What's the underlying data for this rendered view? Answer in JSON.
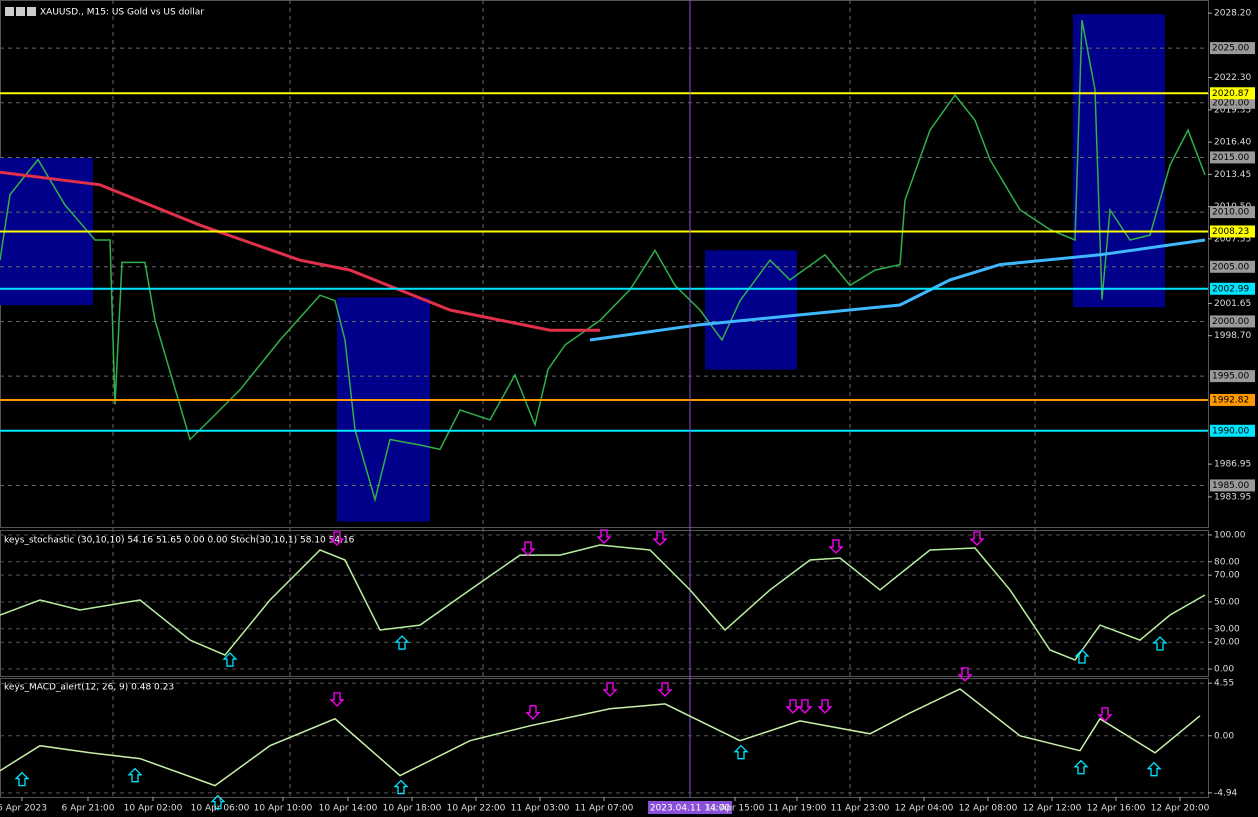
{
  "chart_data": [
    {
      "type": "line",
      "title": "XAUUSD., M15:  US Gold vs US dollar",
      "xlim": [
        0,
        302
      ],
      "ylim": [
        1981.2,
        2029.4
      ],
      "yticks": [
        {
          "value": 2028.2,
          "label": "2028.20"
        },
        {
          "value": 2022.3,
          "label": "2022.30"
        },
        2019.35,
        {
          "value": 2016.4,
          "label": "2016.40"
        },
        2013.45,
        {
          "value": 2010.5,
          "label": "2010.50"
        },
        2007.55,
        2001.65,
        {
          "value": 1998.7,
          "label": "1998.70"
        },
        1986.95,
        1983.95
      ],
      "grid_levels": [
        {
          "value": 2025,
          "label": "2025.00"
        },
        {
          "value": 2020,
          "label": "2020.00"
        },
        {
          "value": 2015,
          "label": "2015.00"
        },
        {
          "value": 2010,
          "label": "2010.00"
        },
        {
          "value": 2005,
          "label": "2005.00"
        },
        {
          "value": 2000,
          "label": "2000.00"
        },
        {
          "value": 1995,
          "label": "1995.00"
        },
        {
          "value": 1985,
          "label": "1985.00"
        }
      ],
      "levels": [
        {
          "value": 2020.87,
          "color": "#ffff00"
        },
        {
          "value": 2008.23,
          "color": "#ffff00"
        },
        {
          "value": 2002.99,
          "color": "#00e5ff"
        },
        {
          "value": 1992.82,
          "color": "#ff9800"
        },
        {
          "value": 1990,
          "label": "1990.00",
          "color": "#00e5ff"
        }
      ],
      "zones": [
        {
          "x": [
            0,
            23.25
          ],
          "y": [
            2001.5,
            2014.95
          ]
        },
        {
          "x": [
            84.25,
            107.5
          ],
          "y": [
            1981.7,
            2002.2
          ]
        },
        {
          "x": [
            176.25,
            199.25
          ],
          "y": [
            1995.6,
            2006.5
          ]
        },
        {
          "x": [
            268.25,
            291.25
          ],
          "y": [
            2001.3,
            2028.1
          ]
        }
      ],
      "crosshair": {
        "x": 172.5,
        "label": "2023.04.11 14:00"
      },
      "series": [
        {
          "color": "#2fb04a",
          "x": [
            0,
            2.5,
            9.5,
            16.25,
            23.75,
            27.5,
            28.75,
            30.5,
            36.25,
            38.75,
            47.5,
            52.5,
            60,
            70,
            80,
            83.75,
            86.25,
            88.75,
            93.75,
            97.5,
            105,
            110,
            115,
            122.5,
            128.75,
            133.75,
            137,
            141.25,
            150,
            157.5,
            163.75,
            168.75,
            175,
            180.5,
            185,
            192.5,
            197.5,
            206.25,
            212.5,
            218.75,
            225,
            226.25,
            232.5,
            238.75,
            243.75,
            247.5,
            255,
            262.5,
            268.75,
            270.5,
            273.75,
            275.5,
            277.5,
            282.5,
            287.5,
            292.5,
            297,
            301.25
          ],
          "values": [
            2005.6,
            2011.6,
            2014.8,
            2010.65,
            2007.45,
            2007.45,
            1992.4,
            2005.4,
            2005.4,
            2000.1,
            1989.2,
            1991.0,
            1993.75,
            1998.3,
            2002.4,
            2001.9,
            1998.3,
            1990.1,
            1983.7,
            1989.2,
            1988.7,
            1988.3,
            1991.9,
            1991.0,
            1995.1,
            1990.55,
            1995.6,
            1997.85,
            2000.1,
            2002.9,
            2006.5,
            2003.3,
            2001.05,
            1998.3,
            2001.9,
            2005.6,
            2003.8,
            2006.1,
            2003.3,
            2004.7,
            2005.2,
            2011.1,
            2017.5,
            2020.7,
            2018.4,
            2014.8,
            2010.2,
            2008.4,
            2007.45,
            2027.55,
            2021.2,
            2002.0,
            2010.2,
            2007.45,
            2007.9,
            2014.3,
            2017.5,
            2013.4
          ]
        },
        {
          "color": "#e0304a",
          "x": [
            0,
            25,
            50,
            75,
            87.5,
            112.5,
            137.5,
            150
          ],
          "values": [
            2013.65,
            2012.5,
            2008.8,
            2005.6,
            2004.7,
            2001.05,
            1999.2,
            1999.2
          ]
        },
        {
          "color": "#40b8ff",
          "x": [
            147.5,
            175,
            200,
            225,
            237.5,
            250,
            275,
            301.25
          ],
          "values": [
            1998.3,
            1999.7,
            2000.6,
            2001.5,
            2003.8,
            2005.2,
            2006.1,
            2007.45
          ]
        }
      ]
    },
    {
      "type": "line",
      "title": "keys_stochastic (30,10,10) 54.16 51.65 0.00 0.00 Stoch(30,10,1) 58.10 54.16",
      "xlim": [
        0,
        302
      ],
      "ylim": [
        -5.2,
        103.7
      ],
      "yticks": [
        {
          "value": 100,
          "label": "100.00"
        },
        {
          "value": 80,
          "label": "80.00"
        },
        {
          "value": 70,
          "label": "70.00"
        },
        {
          "value": 50,
          "label": "50.00"
        },
        {
          "value": 30,
          "label": "30.00"
        },
        {
          "value": 20,
          "label": "20.00"
        },
        {
          "value": 0,
          "label": "0.00"
        }
      ],
      "series": [
        {
          "color": "#b8f0a0",
          "x": [
            0,
            10,
            20,
            35,
            47.5,
            56.25,
            67.5,
            80,
            86.25,
            95,
            105,
            117.5,
            130,
            140,
            150,
            162.5,
            172.5,
            181.25,
            192.5,
            202.5,
            210,
            220,
            232.5,
            243.75,
            252.5,
            262.5,
            268.75,
            275,
            285,
            292.5,
            301.25
          ],
          "values": [
            40.3,
            51.5,
            44,
            51.5,
            21.6,
            10.4,
            51.5,
            88.8,
            81.3,
            29.1,
            32.8,
            59,
            85,
            85,
            92.5,
            88.8,
            59,
            29.1,
            59,
            81.3,
            82.8,
            59,
            88.8,
            90.3,
            59,
            14.2,
            6.7,
            32.8,
            21.6,
            40.3,
            55.2
          ]
        }
      ],
      "markers": [
        {
          "direction": "down",
          "color": "#ff00ff",
          "x": [
            84.25,
            132,
            151,
            165,
            209,
            244.25
          ],
          "values": [
            92.5,
            85,
            94,
            92.5,
            86.6,
            92.5
          ]
        },
        {
          "direction": "up",
          "color": "#00e5ff",
          "x": [
            57.5,
            100.5,
            270.5,
            290
          ],
          "values": [
            11.9,
            24.6,
            14.2,
            23.9
          ]
        }
      ]
    },
    {
      "type": "line",
      "title": "keys_MACD_alert(12, 26, 9) 0.48 0.23",
      "xlim": [
        0,
        302
      ],
      "ylim": [
        -5.3,
        5.0
      ],
      "yticks": [
        4.55,
        {
          "value": 0,
          "label": "0.00"
        },
        -4.94
      ],
      "xticks": [
        {
          "value": 5.5,
          "label": "6 Apr 2023"
        },
        {
          "value": 22,
          "label": "6 Apr 21:00"
        },
        {
          "value": 38.25,
          "label": "10 Apr 02:00"
        },
        {
          "value": 55,
          "label": "10 Apr 06:00"
        },
        {
          "value": 70.75,
          "label": "10 Apr 10:00"
        },
        {
          "value": 87,
          "label": "10 Apr 14:00"
        },
        {
          "value": 103,
          "label": "10 Apr 18:00"
        },
        {
          "value": 119,
          "label": "10 Apr 22:00"
        },
        {
          "value": 135,
          "label": "11 Apr 03:00"
        },
        {
          "value": 151,
          "label": "11 Apr 07:00"
        },
        {
          "value": 183.75,
          "label": "11 Apr 15:00"
        },
        {
          "value": 199.25,
          "label": "11 Apr 19:00"
        },
        {
          "value": 215,
          "label": "11 Apr 23:00"
        },
        {
          "value": 231,
          "label": "12 Apr 04:00"
        },
        {
          "value": 247,
          "label": "12 Apr 08:00"
        },
        {
          "value": 263,
          "label": "12 Apr 12:00"
        },
        {
          "value": 279,
          "label": "12 Apr 16:00"
        },
        {
          "value": 295,
          "label": "12 Apr 20:00"
        }
      ],
      "series": [
        {
          "color": "#c8f0a8",
          "x": [
            0,
            10,
            22.5,
            35,
            53.75,
            67.5,
            83.75,
            100,
            117.5,
            132.5,
            152.5,
            166.25,
            185,
            200,
            217.5,
            227.5,
            240,
            255,
            270,
            275,
            288.75,
            300
          ],
          "values": [
            -3.02,
            -0.86,
            -1.47,
            -1.98,
            -4.31,
            -0.86,
            1.47,
            -3.45,
            -0.43,
            0.86,
            2.33,
            2.76,
            -0.43,
            1.29,
            0.17,
            1.98,
            4.05,
            0,
            -1.29,
            1.47,
            -1.47,
            1.73
          ]
        }
      ],
      "markers": [
        {
          "direction": "down",
          "color": "#ff00ff",
          "x": [
            84.25,
            133.25,
            152.5,
            166.25,
            198.25,
            201.25,
            206.25,
            241.25,
            276.25
          ],
          "values": [
            2.59,
            1.47,
            3.45,
            3.45,
            1.98,
            1.98,
            1.98,
            4.75,
            1.29
          ]
        },
        {
          "direction": "up",
          "color": "#00e5ff",
          "x": [
            5.5,
            33.75,
            54.5,
            100.25,
            185.25,
            270.25,
            288.5
          ],
          "values": [
            -3.19,
            -2.85,
            -5.18,
            -3.88,
            -0.86,
            -2.16,
            -2.33
          ]
        }
      ]
    }
  ]
}
